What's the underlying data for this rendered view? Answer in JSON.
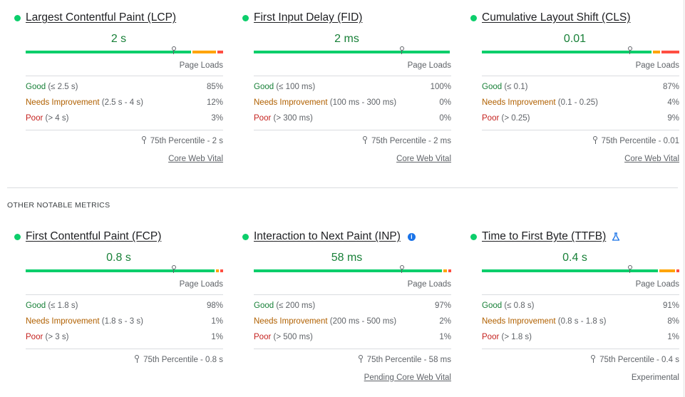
{
  "section": {
    "other_label": "OTHER NOTABLE METRICS"
  },
  "colors": {
    "good": "#0cce6b",
    "needs_improvement": "#ffa400",
    "poor": "#ff4e42",
    "value_text": "#188038"
  },
  "metrics": [
    {
      "title": "Largest Contentful Paint (LCP)",
      "value": "2 s",
      "distribution": [
        0.85,
        0.12,
        0.03
      ],
      "p75_fraction": 0.75,
      "page_loads_label": "Page Loads",
      "good_label": "Good",
      "good_range": "(≤ 2.5 s)",
      "good_pct": "85%",
      "ni_label": "Needs Improvement",
      "ni_range": "(2.5 s - 4 s)",
      "ni_pct": "12%",
      "poor_label": "Poor",
      "poor_range": "(> 4 s)",
      "poor_pct": "3%",
      "percentile": "75th Percentile - 2 s",
      "status": "Core Web Vital"
    },
    {
      "title": "First Input Delay (FID)",
      "value": "2 ms",
      "distribution": [
        1.0,
        0.0,
        0.0
      ],
      "p75_fraction": 0.75,
      "page_loads_label": "Page Loads",
      "good_label": "Good",
      "good_range": "(≤ 100 ms)",
      "good_pct": "100%",
      "ni_label": "Needs Improvement",
      "ni_range": "(100 ms - 300 ms)",
      "ni_pct": "0%",
      "poor_label": "Poor",
      "poor_range": "(> 300 ms)",
      "poor_pct": "0%",
      "percentile": "75th Percentile - 2 ms",
      "status": "Core Web Vital"
    },
    {
      "title": "Cumulative Layout Shift (CLS)",
      "value": "0.01",
      "distribution": [
        0.87,
        0.04,
        0.09
      ],
      "p75_fraction": 0.75,
      "page_loads_label": "Page Loads",
      "good_label": "Good",
      "good_range": "(≤ 0.1)",
      "good_pct": "87%",
      "ni_label": "Needs Improvement",
      "ni_range": "(0.1 - 0.25)",
      "ni_pct": "4%",
      "poor_label": "Poor",
      "poor_range": "(> 0.25)",
      "poor_pct": "9%",
      "percentile": "75th Percentile - 0.01",
      "status": "Core Web Vital"
    },
    {
      "title": "First Contentful Paint (FCP)",
      "value": "0.8 s",
      "distribution": [
        0.98,
        0.01,
        0.01
      ],
      "p75_fraction": 0.75,
      "page_loads_label": "Page Loads",
      "good_label": "Good",
      "good_range": "(≤ 1.8 s)",
      "good_pct": "98%",
      "ni_label": "Needs Improvement",
      "ni_range": "(1.8 s - 3 s)",
      "ni_pct": "1%",
      "poor_label": "Poor",
      "poor_range": "(> 3 s)",
      "poor_pct": "1%",
      "percentile": "75th Percentile - 0.8 s",
      "status": ""
    },
    {
      "title": "Interaction to Next Paint (INP)",
      "value": "58 ms",
      "distribution": [
        0.97,
        0.02,
        0.01
      ],
      "p75_fraction": 0.75,
      "page_loads_label": "Page Loads",
      "good_label": "Good",
      "good_range": "(≤ 200 ms)",
      "good_pct": "97%",
      "ni_label": "Needs Improvement",
      "ni_range": "(200 ms - 500 ms)",
      "ni_pct": "2%",
      "poor_label": "Poor",
      "poor_range": "(> 500 ms)",
      "poor_pct": "1%",
      "percentile": "75th Percentile - 58 ms",
      "status": "Pending Core Web Vital"
    },
    {
      "title": "Time to First Byte (TTFB)",
      "value": "0.4 s",
      "distribution": [
        0.91,
        0.08,
        0.01
      ],
      "p75_fraction": 0.75,
      "page_loads_label": "Page Loads",
      "good_label": "Good",
      "good_range": "(≤ 0.8 s)",
      "good_pct": "91%",
      "ni_label": "Needs Improvement",
      "ni_range": "(0.8 s - 1.8 s)",
      "ni_pct": "8%",
      "poor_label": "Poor",
      "poor_range": "(> 1.8 s)",
      "poor_pct": "1%",
      "percentile": "75th Percentile - 0.4 s",
      "status": "Experimental"
    }
  ]
}
